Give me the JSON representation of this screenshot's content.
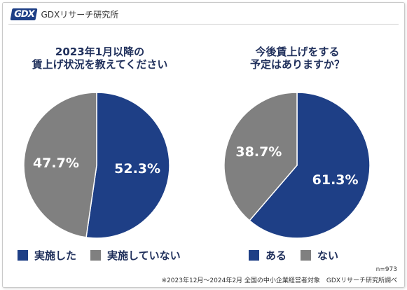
{
  "brand": {
    "logo_mark": "GDX",
    "name": "GDXリサーチ研究所"
  },
  "colors": {
    "yes": "#1e3f86",
    "no": "#808080",
    "title": "#1f2f5b"
  },
  "chart_data": [
    {
      "type": "pie",
      "title_lines": [
        "2023年1月以降の",
        "賃上げ状況を教えてください"
      ],
      "slices": [
        {
          "label": "実施した",
          "value": 52.3,
          "text": "52.3%",
          "color": "#1e3f86"
        },
        {
          "label": "実施していない",
          "value": 47.7,
          "text": "47.7%",
          "color": "#808080"
        }
      ],
      "legend": [
        "実施した",
        "実施していない"
      ]
    },
    {
      "type": "pie",
      "title_lines": [
        "今後賃上げをする",
        "予定はありますか？"
      ],
      "slices": [
        {
          "label": "ある",
          "value": 61.3,
          "text": "61.3%",
          "color": "#1e3f86"
        },
        {
          "label": "ない",
          "value": 38.7,
          "text": "38.7%",
          "color": "#808080"
        }
      ],
      "legend": [
        "ある",
        "ない"
      ]
    }
  ],
  "footnote": {
    "n": "n=973",
    "source": "※2023年12月～2024年2月 全国の中小企業経営者対象　GDXリサーチ研究所調べ"
  }
}
